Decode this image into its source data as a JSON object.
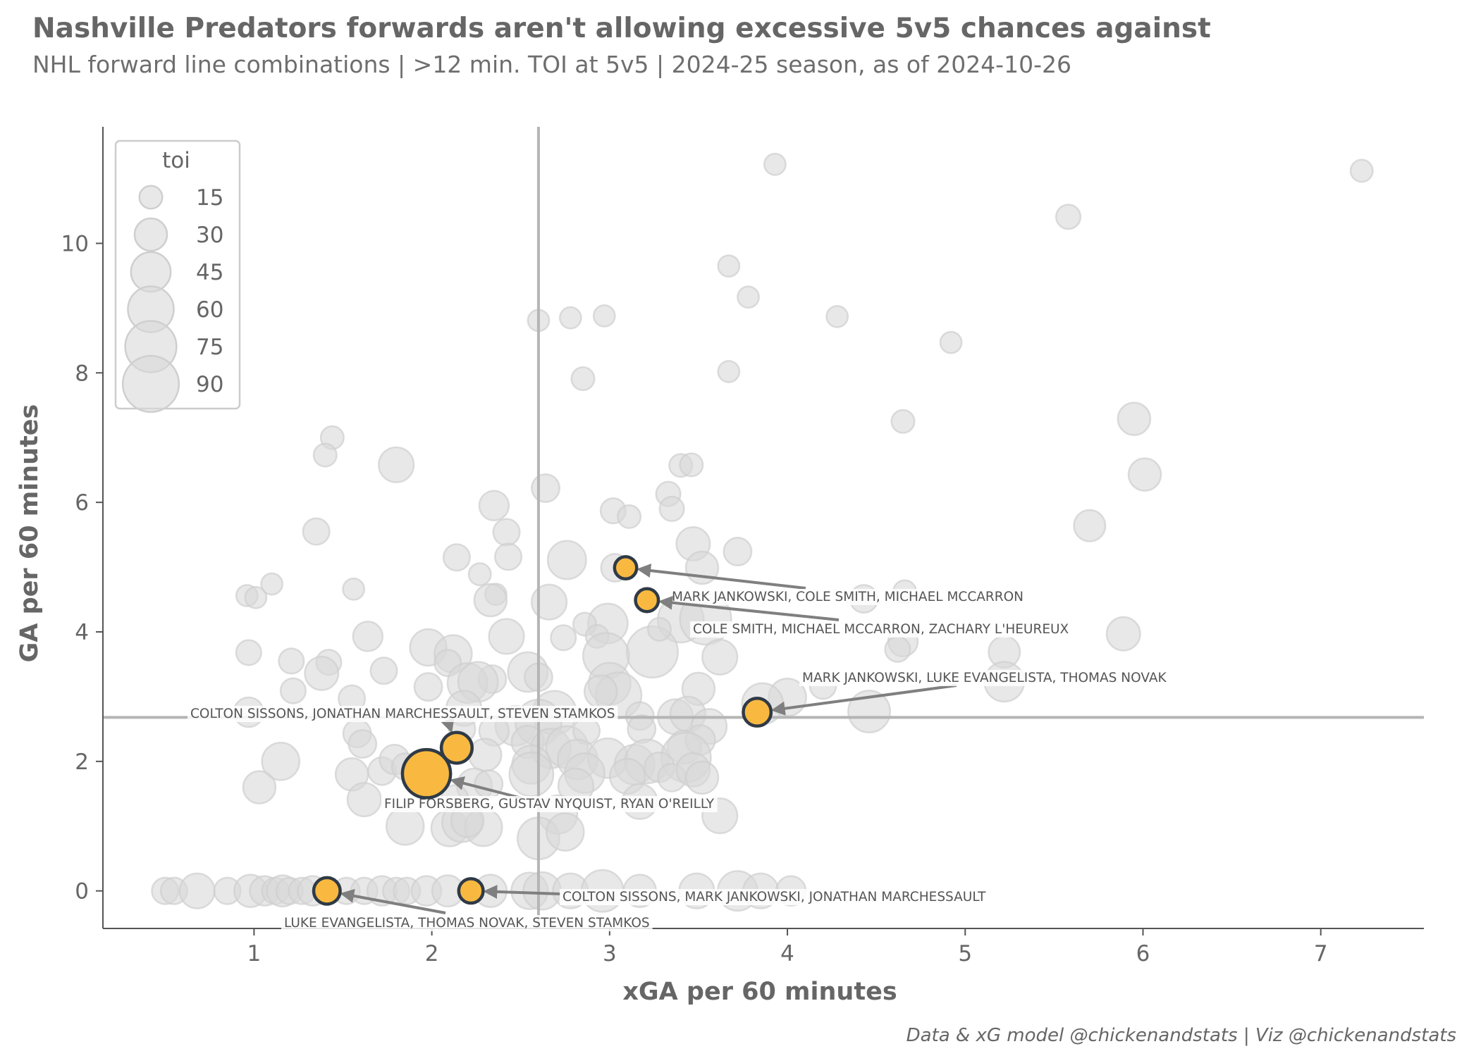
{
  "title": "Nashville Predators forwards aren't allowing excessive 5v5 chances against",
  "subtitle": "NHL forward line combinations | >12 min. TOI at 5v5 | 2024-25 season, as of 2024-10-26",
  "credit": "Data & xG model @chickenandstats | Viz @chickenandstats",
  "colors": {
    "highlight": "#f9b940",
    "highlight_edge": "#2f3a46",
    "background_points": "#d9d9d9",
    "reference_lines": "#b5b5b5",
    "arrow": "#7f7f7f"
  },
  "chart_data": {
    "type": "scatter",
    "xlabel": "xGA per 60 minutes",
    "ylabel": "GA per 60 minutes",
    "xlim": [
      0.15,
      7.58
    ],
    "ylim": [
      -0.58,
      11.8
    ],
    "xticks": [
      1,
      2,
      3,
      4,
      5,
      6,
      7
    ],
    "yticks": [
      0,
      2,
      4,
      6,
      8,
      10
    ],
    "reference_lines": {
      "x": 2.6,
      "y": 2.68
    },
    "grid": false,
    "legend": {
      "title": "toi",
      "placement": "top-left",
      "sizes": [
        15,
        30,
        45,
        60,
        75,
        90
      ]
    },
    "highlighted": [
      {
        "label": "MARK JANKOWSKI, COLE SMITH, MICHAEL MCCARRON",
        "x": 3.09,
        "y": 4.99,
        "toi": 14
      },
      {
        "label": "COLE SMITH, MICHAEL MCCARRON, ZACHARY L'HEUREUX",
        "x": 3.21,
        "y": 4.49,
        "toi": 15
      },
      {
        "label": "MARK JANKOWSKI, LUKE EVANGELISTA, THOMAS NOVAK",
        "x": 3.83,
        "y": 2.76,
        "toi": 22
      },
      {
        "label": "COLTON SISSONS, JONATHAN MARCHESSAULT, STEVEN STAMKOS",
        "x": 2.14,
        "y": 2.21,
        "toi": 27
      },
      {
        "label": "FILIP FORSBERG, GUSTAV NYQUIST, RYAN O'REILLY",
        "x": 1.97,
        "y": 1.81,
        "toi": 66
      },
      {
        "label": "COLTON SISSONS, MARK JANKOWSKI, JONATHAN MARCHESSAULT",
        "x": 2.22,
        "y": 0.0,
        "toi": 17
      },
      {
        "label": "LUKE EVANGELISTA, THOMAS NOVAK, STEVEN STAMKOS",
        "x": 1.41,
        "y": 0.0,
        "toi": 20
      }
    ],
    "others": [
      [
        3.93,
        11.22,
        13
      ],
      [
        7.23,
        11.12,
        14
      ],
      [
        5.58,
        10.41,
        17
      ],
      [
        3.67,
        9.65,
        13
      ],
      [
        3.78,
        9.17,
        13
      ],
      [
        2.6,
        8.81,
        13
      ],
      [
        2.78,
        8.85,
        13
      ],
      [
        2.97,
        8.88,
        13
      ],
      [
        4.28,
        8.87,
        13
      ],
      [
        4.92,
        8.47,
        13
      ],
      [
        2.85,
        7.91,
        15
      ],
      [
        3.67,
        8.02,
        13
      ],
      [
        4.65,
        7.25,
        15
      ],
      [
        5.95,
        7.29,
        30
      ],
      [
        1.44,
        7.0,
        15
      ],
      [
        1.4,
        6.73,
        15
      ],
      [
        1.8,
        6.58,
        35
      ],
      [
        3.4,
        6.57,
        15
      ],
      [
        3.46,
        6.58,
        15
      ],
      [
        6.01,
        6.43,
        30
      ],
      [
        2.64,
        6.22,
        22
      ],
      [
        3.33,
        6.13,
        17
      ],
      [
        3.35,
        5.9,
        17
      ],
      [
        2.35,
        5.95,
        25
      ],
      [
        3.02,
        5.87,
        18
      ],
      [
        3.11,
        5.78,
        15
      ],
      [
        1.35,
        5.55,
        20
      ],
      [
        2.42,
        5.54,
        20
      ],
      [
        3.47,
        5.36,
        32
      ],
      [
        5.7,
        5.64,
        28
      ],
      [
        3.72,
        5.24,
        22
      ],
      [
        2.14,
        5.15,
        20
      ],
      [
        2.43,
        5.16,
        20
      ],
      [
        2.76,
        5.11,
        42
      ],
      [
        3.52,
        4.99,
        30
      ],
      [
        2.27,
        4.89,
        14
      ],
      [
        3.03,
        4.99,
        22
      ],
      [
        0.96,
        4.56,
        13
      ],
      [
        1.01,
        4.53,
        13
      ],
      [
        1.1,
        4.74,
        13
      ],
      [
        1.56,
        4.66,
        13
      ],
      [
        2.36,
        4.58,
        13
      ],
      [
        2.33,
        4.49,
        30
      ],
      [
        2.66,
        4.46,
        35
      ],
      [
        4.66,
        4.62,
        15
      ],
      [
        2.99,
        4.13,
        45
      ],
      [
        3.4,
        4.19,
        60
      ],
      [
        3.54,
        4.2,
        75
      ],
      [
        4.43,
        4.51,
        22
      ],
      [
        2.86,
        4.12,
        15
      ],
      [
        2.93,
        3.93,
        15
      ],
      [
        2.74,
        3.91,
        18
      ],
      [
        1.64,
        3.93,
        25
      ],
      [
        2.42,
        3.93,
        35
      ],
      [
        0.97,
        3.68,
        18
      ],
      [
        1.98,
        3.76,
        38
      ],
      [
        2.12,
        3.66,
        40
      ],
      [
        3.24,
        3.69,
        75
      ],
      [
        3.28,
        4.04,
        15
      ],
      [
        4.65,
        3.85,
        25
      ],
      [
        4.62,
        3.73,
        18
      ],
      [
        5.22,
        3.69,
        28
      ],
      [
        5.89,
        3.97,
        32
      ],
      [
        1.21,
        3.55,
        18
      ],
      [
        1.42,
        3.53,
        18
      ],
      [
        1.38,
        3.36,
        32
      ],
      [
        2.09,
        3.52,
        20
      ],
      [
        1.73,
        3.4,
        20
      ],
      [
        2.34,
        3.27,
        22
      ],
      [
        2.54,
        3.38,
        45
      ],
      [
        2.6,
        3.3,
        22
      ],
      [
        2.98,
        3.63,
        60
      ],
      [
        3.62,
        3.61,
        35
      ],
      [
        1.98,
        3.15,
        22
      ],
      [
        2.2,
        3.21,
        45
      ],
      [
        2.26,
        3.23,
        45
      ],
      [
        3.0,
        3.2,
        50
      ],
      [
        3.05,
        3.02,
        60
      ],
      [
        3.5,
        3.12,
        30
      ],
      [
        4.0,
        2.99,
        40
      ],
      [
        1.22,
        3.09,
        18
      ],
      [
        1.55,
        2.97,
        20
      ],
      [
        2.95,
        3.08,
        30
      ],
      [
        3.86,
        2.89,
        48
      ],
      [
        4.2,
        3.17,
        20
      ],
      [
        5.22,
        3.23,
        45
      ],
      [
        0.97,
        2.76,
        25
      ],
      [
        2.18,
        2.82,
        35
      ],
      [
        2.69,
        2.75,
        55
      ],
      [
        3.17,
        2.7,
        22
      ],
      [
        3.37,
        2.69,
        35
      ],
      [
        3.44,
        2.73,
        35
      ],
      [
        4.46,
        2.77,
        50
      ],
      [
        2.47,
        2.55,
        45
      ],
      [
        2.6,
        2.6,
        60
      ],
      [
        1.58,
        2.43,
        22
      ],
      [
        2.17,
        2.5,
        20
      ],
      [
        2.35,
        2.47,
        25
      ],
      [
        3.18,
        2.5,
        22
      ],
      [
        3.56,
        2.54,
        35
      ],
      [
        1.61,
        2.27,
        22
      ],
      [
        2.54,
        2.3,
        30
      ],
      [
        2.67,
        2.2,
        45
      ],
      [
        2.76,
        2.22,
        50
      ],
      [
        2.87,
        2.47,
        20
      ],
      [
        3.42,
        2.22,
        32
      ],
      [
        3.51,
        2.33,
        25
      ],
      [
        2.82,
        2.03,
        45
      ],
      [
        2.99,
        2.05,
        45
      ],
      [
        3.14,
        1.95,
        45
      ],
      [
        3.21,
        2.0,
        55
      ],
      [
        3.43,
        2.06,
        70
      ],
      [
        1.15,
        2.0,
        40
      ],
      [
        1.72,
        1.85,
        22
      ],
      [
        1.79,
        2.03,
        25
      ],
      [
        1.85,
        1.92,
        20
      ],
      [
        2.3,
        2.1,
        30
      ],
      [
        2.56,
        1.95,
        42
      ],
      [
        3.28,
        1.91,
        25
      ],
      [
        3.35,
        1.75,
        22
      ],
      [
        1.55,
        1.8,
        30
      ],
      [
        2.56,
        1.8,
        55
      ],
      [
        2.86,
        1.82,
        45
      ],
      [
        3.1,
        1.77,
        35
      ],
      [
        3.47,
        1.87,
        32
      ],
      [
        3.52,
        1.75,
        30
      ],
      [
        2.24,
        1.62,
        35
      ],
      [
        2.32,
        1.65,
        22
      ],
      [
        2.81,
        1.62,
        35
      ],
      [
        1.03,
        1.6,
        30
      ],
      [
        1.62,
        1.41,
        32
      ],
      [
        2.13,
        1.43,
        20
      ],
      [
        3.17,
        1.38,
        35
      ],
      [
        2.71,
        1.18,
        42
      ],
      [
        3.62,
        1.16,
        35
      ],
      [
        1.85,
        1.0,
        40
      ],
      [
        2.1,
        0.97,
        38
      ],
      [
        2.17,
        1.06,
        45
      ],
      [
        2.29,
        0.98,
        40
      ],
      [
        2.2,
        1.08,
        30
      ],
      [
        2.6,
        0.81,
        50
      ],
      [
        2.75,
        0.91,
        40
      ],
      [
        0.5,
        0.0,
        20
      ],
      [
        0.55,
        0.0,
        20
      ],
      [
        0.68,
        0.0,
        35
      ],
      [
        0.85,
        0.0,
        20
      ],
      [
        0.98,
        0.0,
        30
      ],
      [
        1.06,
        0.0,
        25
      ],
      [
        1.12,
        0.0,
        20
      ],
      [
        1.16,
        0.0,
        28
      ],
      [
        1.2,
        0.0,
        20
      ],
      [
        1.27,
        0.0,
        20
      ],
      [
        1.33,
        0.0,
        25
      ],
      [
        1.52,
        0.0,
        20
      ],
      [
        1.62,
        0.0,
        20
      ],
      [
        1.72,
        0.0,
        25
      ],
      [
        1.8,
        0.0,
        20
      ],
      [
        1.86,
        0.0,
        20
      ],
      [
        1.97,
        0.0,
        25
      ],
      [
        2.09,
        0.0,
        28
      ],
      [
        2.33,
        0.0,
        30
      ],
      [
        2.55,
        0.0,
        38
      ],
      [
        2.62,
        0.0,
        40
      ],
      [
        2.78,
        0.0,
        35
      ],
      [
        2.96,
        0.0,
        50
      ],
      [
        3.17,
        0.0,
        30
      ],
      [
        3.49,
        0.0,
        35
      ],
      [
        3.72,
        0.0,
        45
      ],
      [
        3.85,
        0.0,
        35
      ],
      [
        4.02,
        0.0,
        25
      ]
    ]
  }
}
